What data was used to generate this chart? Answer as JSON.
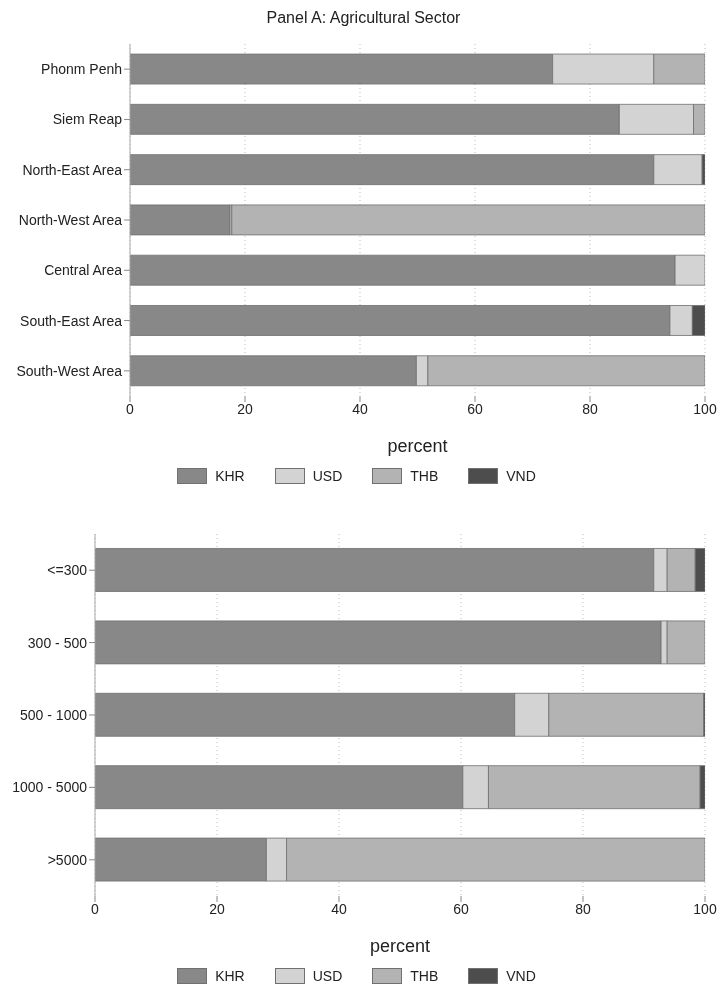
{
  "chart_data": [
    {
      "type": "bar",
      "title": "Panel A: Agricultural Sector",
      "orientation": "horizontal",
      "stacked": true,
      "categories": [
        "Phonm Penh",
        "Siem Reap",
        "North-East Area",
        "North-West Area",
        "Central Area",
        "South-East Area",
        "South-West Area"
      ],
      "xlabel": "percent",
      "xlim": [
        0,
        100
      ],
      "xticks": [
        0,
        20,
        40,
        60,
        80,
        100
      ],
      "grid": "x",
      "legend": "bottom",
      "series": [
        {
          "name": "KHR",
          "color": "#888888",
          "values": [
            73.5,
            85.1,
            91.1,
            17.4,
            94.8,
            93.9,
            49.8
          ]
        },
        {
          "name": "USD",
          "color": "#d3d3d3",
          "values": [
            17.6,
            12.9,
            8.4,
            0.3,
            5.2,
            3.9,
            2.0
          ]
        },
        {
          "name": "THB",
          "color": "#b3b3b3",
          "values": [
            8.9,
            2.0,
            0,
            82.3,
            0,
            0,
            48.2
          ]
        },
        {
          "name": "VND",
          "color": "#4d4d4d",
          "values": [
            0,
            0,
            0.5,
            0,
            0,
            2.2,
            0
          ]
        }
      ]
    },
    {
      "type": "bar",
      "orientation": "horizontal",
      "stacked": true,
      "categories": [
        "<=300",
        "300 - 500",
        "500 - 1000",
        "1000 - 5000",
        ">5000"
      ],
      "xlabel": "percent",
      "xlim": [
        0,
        100
      ],
      "xticks": [
        0,
        20,
        40,
        60,
        80,
        100
      ],
      "grid": "x",
      "legend": "bottom",
      "series": [
        {
          "name": "KHR",
          "color": "#888888",
          "values": [
            91.6,
            92.8,
            68.8,
            60.3,
            28.1
          ]
        },
        {
          "name": "USD",
          "color": "#d3d3d3",
          "values": [
            2.2,
            1.0,
            5.6,
            4.2,
            3.3
          ]
        },
        {
          "name": "THB",
          "color": "#b3b3b3",
          "values": [
            4.6,
            6.2,
            25.4,
            34.7,
            68.6
          ]
        },
        {
          "name": "VND",
          "color": "#4d4d4d",
          "values": [
            1.6,
            0,
            0.2,
            0.8,
            0
          ]
        }
      ]
    }
  ]
}
